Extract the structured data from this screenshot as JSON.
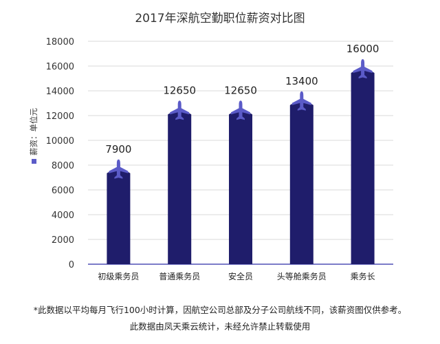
{
  "chart_data": {
    "type": "bar",
    "title": "2017年深航空勤职位薪资对比图",
    "legend_label": "薪资：单位元",
    "categories": [
      "初级乘务员",
      "普通乘务员",
      "安全员",
      "头等舱乘务员",
      "乘务长"
    ],
    "values": [
      7900,
      12650,
      12650,
      13400,
      16000
    ],
    "ylim": [
      0,
      18000
    ],
    "yticks": [
      0,
      2000,
      4000,
      6000,
      8000,
      10000,
      12000,
      14000,
      16000,
      18000
    ],
    "grid": true,
    "bar_color": "#1f1d6b",
    "marker_color": "#5b5bc8",
    "axis_color": "#7b7bc8"
  },
  "footnotes": {
    "line1": "*此数据以平均每月飞行100小时计算，因航空公司总部及分子公司航线不同，该薪资图仅供参考。",
    "line2": "此数据由凤天乘云统计，未经允许禁止转载使用"
  }
}
